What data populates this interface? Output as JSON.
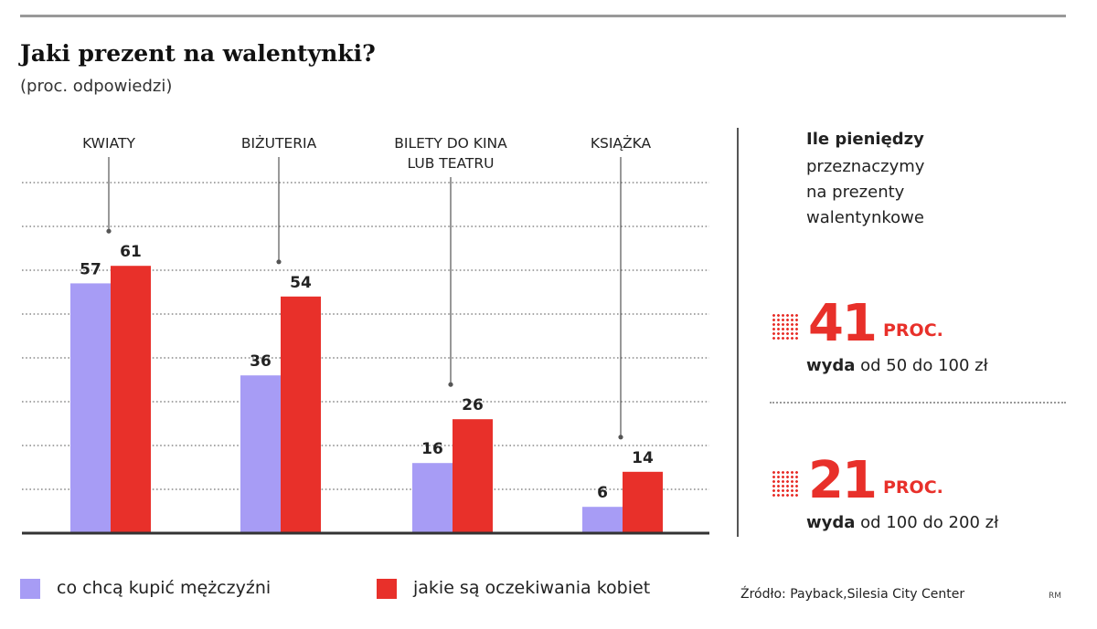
{
  "header": {
    "title": "Jaki prezent na walentynki?",
    "subtitle": "(proc. odpowiedzi)"
  },
  "chart_data": {
    "type": "bar",
    "categories": [
      {
        "label": "KWIATY",
        "lines": [
          "KWIATY"
        ]
      },
      {
        "label": "BIŻUTERIA",
        "lines": [
          "BIŻUTERIA"
        ]
      },
      {
        "label": "BILETY DO KINA LUB TEATRU",
        "lines": [
          "BILETY DO KINA",
          "LUB TEATRU"
        ]
      },
      {
        "label": "KSIĄŻKA",
        "lines": [
          "KSIĄŻKA"
        ]
      }
    ],
    "series": [
      {
        "name": "co chcą kupić mężczyźni",
        "color": "#a79cf5",
        "values": [
          57,
          36,
          16,
          6
        ]
      },
      {
        "name": "jakie są oczekiwania kobiet",
        "color": "#e8302a",
        "values": [
          61,
          54,
          26,
          14
        ]
      }
    ],
    "ylim": [
      0,
      80
    ],
    "grid": true,
    "legend": "bottom"
  },
  "sidebar": {
    "heading": "Ile pieniędzy",
    "line1": "przeznaczymy",
    "line2": "na prezenty",
    "line3": "walentynkowe",
    "stats": [
      {
        "value": "41",
        "unit": "PROC.",
        "verb": "wyda",
        "range": "od 50 do 100 zł"
      },
      {
        "value": "21",
        "unit": "PROC.",
        "verb": "wyda",
        "range": "od 100 do 200 zł"
      }
    ]
  },
  "legend": {
    "men": "co chcą kupić mężczyźni",
    "women": "jakie są oczekiwania kobiet"
  },
  "footer": {
    "source": "Źródło: Payback,Silesia City Center",
    "author": "RM"
  },
  "colors": {
    "men": "#a79cf5",
    "women": "#e8302a",
    "accent": "#e8302a"
  }
}
